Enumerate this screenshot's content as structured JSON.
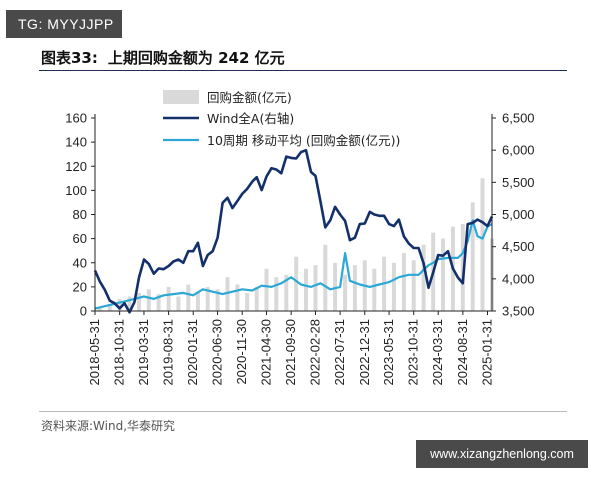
{
  "badge": "TG: MYYJJPP",
  "figure": {
    "label": "图表33:",
    "title": "上期回购金额为 242 亿元",
    "source": "资料来源:Wind,华泰研究"
  },
  "watermark": "www.xizangzhenlong.com",
  "chart_data": {
    "type": "combo",
    "legend_position": "top-center",
    "grid": false,
    "x_ticks": [
      "2018-05-31",
      "2018-10-31",
      "2019-03-31",
      "2019-08-31",
      "2020-01-31",
      "2020-06-30",
      "2020-11-30",
      "2021-04-30",
      "2021-09-30",
      "2022-02-28",
      "2022-07-31",
      "2022-12-31",
      "2023-05-31",
      "2023-10-31",
      "2024-03-31",
      "2024-08-31",
      "2025-01-31"
    ],
    "x_range": [
      "2018-05-31",
      "2025-02-28"
    ],
    "y_left": {
      "range": [
        0,
        160
      ],
      "ticks": [
        0,
        20,
        40,
        60,
        80,
        100,
        120,
        140,
        160
      ]
    },
    "y_right": {
      "range": [
        3500,
        6500
      ],
      "ticks": [
        "3,500",
        "4,000",
        "4,500",
        "5,000",
        "5,500",
        "6,000",
        "6,500"
      ]
    },
    "colors": {
      "bars": "#d9d9d9",
      "wind": "#14306b",
      "ma10": "#2ba8d6"
    },
    "series": [
      {
        "name": "回购金额(亿元)",
        "type": "bar",
        "axis": "left",
        "x": [
          "2018-06-30",
          "2018-08-31",
          "2018-10-31",
          "2018-12-31",
          "2019-02-28",
          "2019-04-30",
          "2019-06-30",
          "2019-08-31",
          "2019-10-31",
          "2019-12-31",
          "2020-02-29",
          "2020-04-30",
          "2020-06-30",
          "2020-08-31",
          "2020-10-31",
          "2020-12-31",
          "2021-02-28",
          "2021-04-30",
          "2021-06-30",
          "2021-08-31",
          "2021-10-31",
          "2021-12-31",
          "2022-02-28",
          "2022-04-30",
          "2022-06-30",
          "2022-08-31",
          "2022-10-31",
          "2022-12-31",
          "2023-02-28",
          "2023-04-30",
          "2023-06-30",
          "2023-08-31",
          "2023-10-31",
          "2023-12-31",
          "2024-02-29",
          "2024-04-30",
          "2024-06-30",
          "2024-08-31",
          "2024-10-31",
          "2024-12-31",
          "2025-02-28"
        ],
        "values": [
          3,
          6,
          10,
          12,
          15,
          18,
          14,
          20,
          12,
          22,
          16,
          20,
          18,
          28,
          22,
          15,
          20,
          35,
          28,
          30,
          45,
          35,
          38,
          55,
          40,
          30,
          38,
          42,
          35,
          45,
          40,
          48,
          42,
          55,
          65,
          60,
          70,
          72,
          90,
          110,
          60
        ]
      },
      {
        "name": "Wind全A(右轴)",
        "type": "line",
        "axis": "right",
        "x": [
          "2018-05-31",
          "2018-06-30",
          "2018-07-31",
          "2018-08-31",
          "2018-09-30",
          "2018-10-31",
          "2018-11-30",
          "2018-12-31",
          "2019-01-31",
          "2019-02-28",
          "2019-03-31",
          "2019-04-30",
          "2019-05-31",
          "2019-06-30",
          "2019-07-31",
          "2019-08-31",
          "2019-09-30",
          "2019-10-31",
          "2019-11-30",
          "2019-12-31",
          "2020-01-31",
          "2020-02-29",
          "2020-03-31",
          "2020-04-30",
          "2020-05-31",
          "2020-06-30",
          "2020-07-31",
          "2020-08-31",
          "2020-09-30",
          "2020-10-31",
          "2020-11-30",
          "2020-12-31",
          "2021-01-31",
          "2021-02-28",
          "2021-03-31",
          "2021-04-30",
          "2021-05-31",
          "2021-06-30",
          "2021-07-31",
          "2021-08-31",
          "2021-09-30",
          "2021-10-31",
          "2021-11-30",
          "2021-12-31",
          "2022-01-31",
          "2022-02-28",
          "2022-03-31",
          "2022-04-30",
          "2022-05-31",
          "2022-06-30",
          "2022-07-31",
          "2022-08-31",
          "2022-09-30",
          "2022-10-31",
          "2022-11-30",
          "2022-12-31",
          "2023-01-31",
          "2023-02-28",
          "2023-03-31",
          "2023-04-30",
          "2023-05-31",
          "2023-06-30",
          "2023-07-31",
          "2023-08-31",
          "2023-09-30",
          "2023-10-31",
          "2023-11-30",
          "2023-12-31",
          "2024-01-31",
          "2024-02-29",
          "2024-03-31",
          "2024-04-30",
          "2024-05-31",
          "2024-06-30",
          "2024-07-31",
          "2024-08-31",
          "2024-09-30",
          "2024-10-31",
          "2024-11-30",
          "2024-12-31",
          "2025-01-31",
          "2025-02-28"
        ],
        "values": [
          4130,
          3960,
          3830,
          3660,
          3620,
          3540,
          3620,
          3480,
          3640,
          4020,
          4300,
          4230,
          4080,
          4160,
          4150,
          4200,
          4270,
          4300,
          4250,
          4430,
          4430,
          4560,
          4200,
          4370,
          4430,
          4640,
          5180,
          5260,
          5100,
          5210,
          5320,
          5400,
          5510,
          5580,
          5380,
          5590,
          5720,
          5700,
          5640,
          5900,
          5880,
          5870,
          5970,
          6000,
          5660,
          5600,
          5200,
          4800,
          4910,
          5120,
          5000,
          4900,
          4600,
          4640,
          4850,
          4860,
          5040,
          5000,
          4980,
          4980,
          4850,
          4820,
          4920,
          4660,
          4550,
          4480,
          4480,
          4240,
          3860,
          4100,
          4370,
          4360,
          4430,
          4160,
          4020,
          3930,
          4850,
          4870,
          4920,
          4880,
          4820,
          4970
        ]
      },
      {
        "name": "10周期 移动平均 (回购金额(亿元))",
        "type": "line",
        "axis": "left",
        "x": [
          "2018-05-31",
          "2018-07-31",
          "2018-09-30",
          "2018-11-30",
          "2019-01-31",
          "2019-03-31",
          "2019-05-31",
          "2019-07-31",
          "2019-09-30",
          "2019-11-30",
          "2020-01-31",
          "2020-03-31",
          "2020-05-31",
          "2020-07-31",
          "2020-09-30",
          "2020-11-30",
          "2021-01-31",
          "2021-03-31",
          "2021-05-31",
          "2021-07-31",
          "2021-09-30",
          "2021-11-30",
          "2022-01-31",
          "2022-03-31",
          "2022-05-31",
          "2022-07-31",
          "2022-08-31",
          "2022-09-30",
          "2022-11-30",
          "2023-01-31",
          "2023-03-31",
          "2023-05-31",
          "2023-07-31",
          "2023-09-30",
          "2023-11-30",
          "2024-01-31",
          "2024-02-29",
          "2024-03-31",
          "2024-05-31",
          "2024-07-31",
          "2024-08-31",
          "2024-09-30",
          "2024-10-31",
          "2024-11-30",
          "2024-12-31",
          "2025-01-31",
          "2025-02-28"
        ],
        "values": [
          2,
          4,
          6,
          8,
          10,
          12,
          10,
          13,
          14,
          15,
          13,
          18,
          16,
          14,
          16,
          18,
          17,
          21,
          20,
          23,
          28,
          22,
          20,
          23,
          18,
          20,
          48,
          25,
          22,
          20,
          22,
          24,
          28,
          30,
          30,
          38,
          40,
          43,
          44,
          44,
          48,
          58,
          75,
          62,
          60,
          70,
          72
        ]
      }
    ]
  }
}
